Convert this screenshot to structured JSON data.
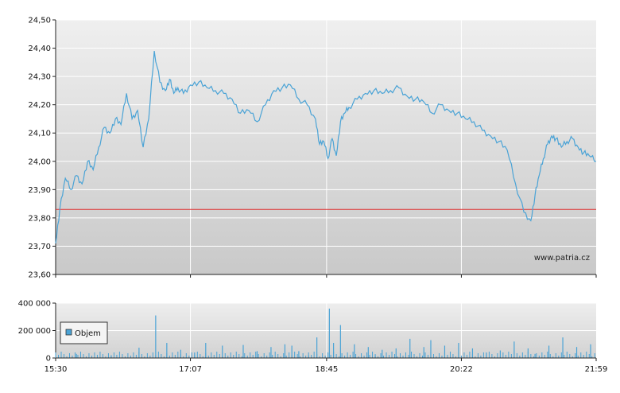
{
  "chart_data": [
    {
      "type": "line",
      "title": "",
      "xlabel": "",
      "ylabel": "",
      "x_ticks": [
        "15:30",
        "17:07",
        "18:45",
        "20:22",
        "21:59"
      ],
      "y_ticks": [
        "23,60",
        "23,70",
        "23,80",
        "23,90",
        "24,00",
        "24,10",
        "24,20",
        "24,30",
        "24,40",
        "24,50"
      ],
      "ylim": [
        23.6,
        24.5
      ],
      "xlim": [
        "15:30",
        "21:59"
      ],
      "reference_line": {
        "value": 23.83,
        "color": "#e03030"
      },
      "series": [
        {
          "color": "#4aa3d6",
          "x": [
            "15:30",
            "15:33",
            "15:37",
            "15:41",
            "15:45",
            "15:49",
            "15:53",
            "15:57",
            "16:01",
            "16:05",
            "16:09",
            "16:13",
            "16:17",
            "16:21",
            "16:25",
            "16:29",
            "16:33",
            "16:37",
            "16:41",
            "16:45",
            "16:49",
            "16:52",
            "16:55",
            "16:58",
            "17:02",
            "17:07",
            "17:13",
            "17:19",
            "17:25",
            "17:31",
            "17:37",
            "17:43",
            "17:49",
            "17:55",
            "18:01",
            "18:07",
            "18:13",
            "18:19",
            "18:25",
            "18:31",
            "18:37",
            "18:40",
            "18:43",
            "18:46",
            "18:49",
            "18:52",
            "18:55",
            "18:58",
            "19:01",
            "19:07",
            "19:13",
            "19:19",
            "19:25",
            "19:31",
            "19:37",
            "19:43",
            "19:49",
            "19:55",
            "20:01",
            "20:07",
            "20:13",
            "20:19",
            "20:25",
            "20:31",
            "20:37",
            "20:43",
            "20:49",
            "20:55",
            "21:01",
            "21:07",
            "21:12",
            "21:15",
            "21:18",
            "21:21",
            "21:24",
            "21:27",
            "21:30",
            "21:34",
            "21:38",
            "21:42",
            "21:46",
            "21:50",
            "21:54",
            "21:59"
          ],
          "y": [
            23.71,
            23.83,
            23.94,
            23.9,
            23.95,
            23.92,
            24.0,
            23.97,
            24.05,
            24.12,
            24.1,
            24.15,
            24.13,
            24.24,
            24.15,
            24.18,
            24.05,
            24.15,
            24.39,
            24.28,
            24.25,
            24.29,
            24.24,
            24.26,
            24.24,
            24.27,
            24.28,
            24.26,
            24.25,
            24.24,
            24.22,
            24.17,
            24.18,
            24.14,
            24.2,
            24.25,
            24.26,
            24.27,
            24.22,
            24.2,
            24.15,
            24.06,
            24.07,
            24.01,
            24.08,
            24.02,
            24.14,
            24.17,
            24.19,
            24.22,
            24.24,
            24.25,
            24.24,
            24.25,
            24.26,
            24.23,
            24.22,
            24.21,
            24.17,
            24.2,
            24.18,
            24.17,
            24.15,
            24.14,
            24.11,
            24.09,
            24.07,
            24.04,
            23.92,
            23.82,
            23.79,
            23.88,
            23.95,
            24.01,
            24.06,
            24.09,
            24.08,
            24.05,
            24.07,
            24.08,
            24.05,
            24.03,
            24.02,
            24.0
          ]
        }
      ],
      "watermark": "www.patria.cz"
    },
    {
      "type": "bar",
      "title": "",
      "xlabel": "",
      "ylabel": "",
      "x_ticks": [
        "15:30",
        "17:07",
        "18:45",
        "20:22",
        "21:59"
      ],
      "y_ticks": [
        "0",
        "200 000",
        "400 000"
      ],
      "ylim": [
        0,
        400000
      ],
      "legend": {
        "position": "left",
        "entries": [
          "Objem"
        ]
      },
      "series": [
        {
          "name": "Objem",
          "color": "#4aa3d6",
          "x": [
            "15:45",
            "16:10",
            "16:30",
            "16:42",
            "16:50",
            "17:00",
            "17:10",
            "17:18",
            "17:30",
            "17:45",
            "17:55",
            "18:05",
            "18:15",
            "18:20",
            "18:25",
            "18:32",
            "18:38",
            "18:47",
            "18:50",
            "18:55",
            "19:05",
            "19:15",
            "19:20",
            "19:25",
            "19:35",
            "19:45",
            "19:55",
            "20:00",
            "20:10",
            "20:20",
            "20:30",
            "20:40",
            "20:50",
            "21:00",
            "21:10",
            "21:15",
            "21:25",
            "21:35",
            "21:45",
            "21:55"
          ],
          "values": [
            30000,
            20000,
            75000,
            310000,
            110000,
            60000,
            40000,
            110000,
            90000,
            95000,
            50000,
            80000,
            100000,
            90000,
            50000,
            20000,
            150000,
            360000,
            110000,
            240000,
            100000,
            80000,
            20000,
            60000,
            70000,
            140000,
            80000,
            130000,
            90000,
            110000,
            70000,
            40000,
            55000,
            120000,
            70000,
            30000,
            90000,
            150000,
            80000,
            100000
          ]
        }
      ]
    }
  ]
}
